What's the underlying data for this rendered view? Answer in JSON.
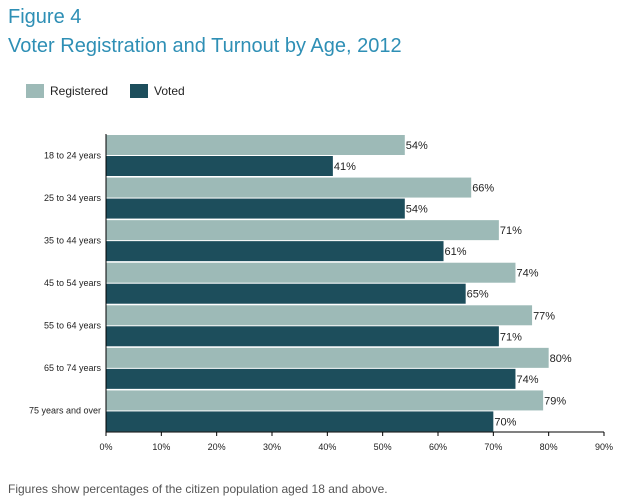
{
  "figure_label": "Figure 4",
  "title": "Voter Registration and Turnout by Age, 2012",
  "footnote": "Figures show percentages of the citizen population aged 18 and above.",
  "colors": {
    "registered": "#9dbab7",
    "voted": "#1d4e5c",
    "title": "#2e8fb5"
  },
  "chart_data": {
    "type": "bar",
    "orientation": "horizontal",
    "categories": [
      "18 to 24 years",
      "25 to 34 years",
      "35 to 44 years",
      "45 to 54 years",
      "55 to 64 years",
      "65 to 74 years",
      "75 years and over"
    ],
    "series": [
      {
        "name": "Registered",
        "values": [
          54,
          66,
          71,
          74,
          77,
          80,
          79
        ],
        "labels": [
          "54%",
          "66%",
          "71%",
          "74%",
          "77%",
          "80%",
          "79%"
        ]
      },
      {
        "name": "Voted",
        "values": [
          41,
          54,
          61,
          65,
          71,
          74,
          70
        ],
        "labels": [
          "41%",
          "54%",
          "61%",
          "65%",
          "71%",
          "74%",
          "70%"
        ]
      }
    ],
    "xlim": [
      0,
      90
    ],
    "xticks": [
      0,
      10,
      20,
      30,
      40,
      50,
      60,
      70,
      80,
      90
    ],
    "xtick_labels": [
      "0%",
      "10%",
      "20%",
      "30%",
      "40%",
      "50%",
      "60%",
      "70%",
      "80%",
      "90%"
    ],
    "legend_position": "top-left",
    "grid": false
  }
}
